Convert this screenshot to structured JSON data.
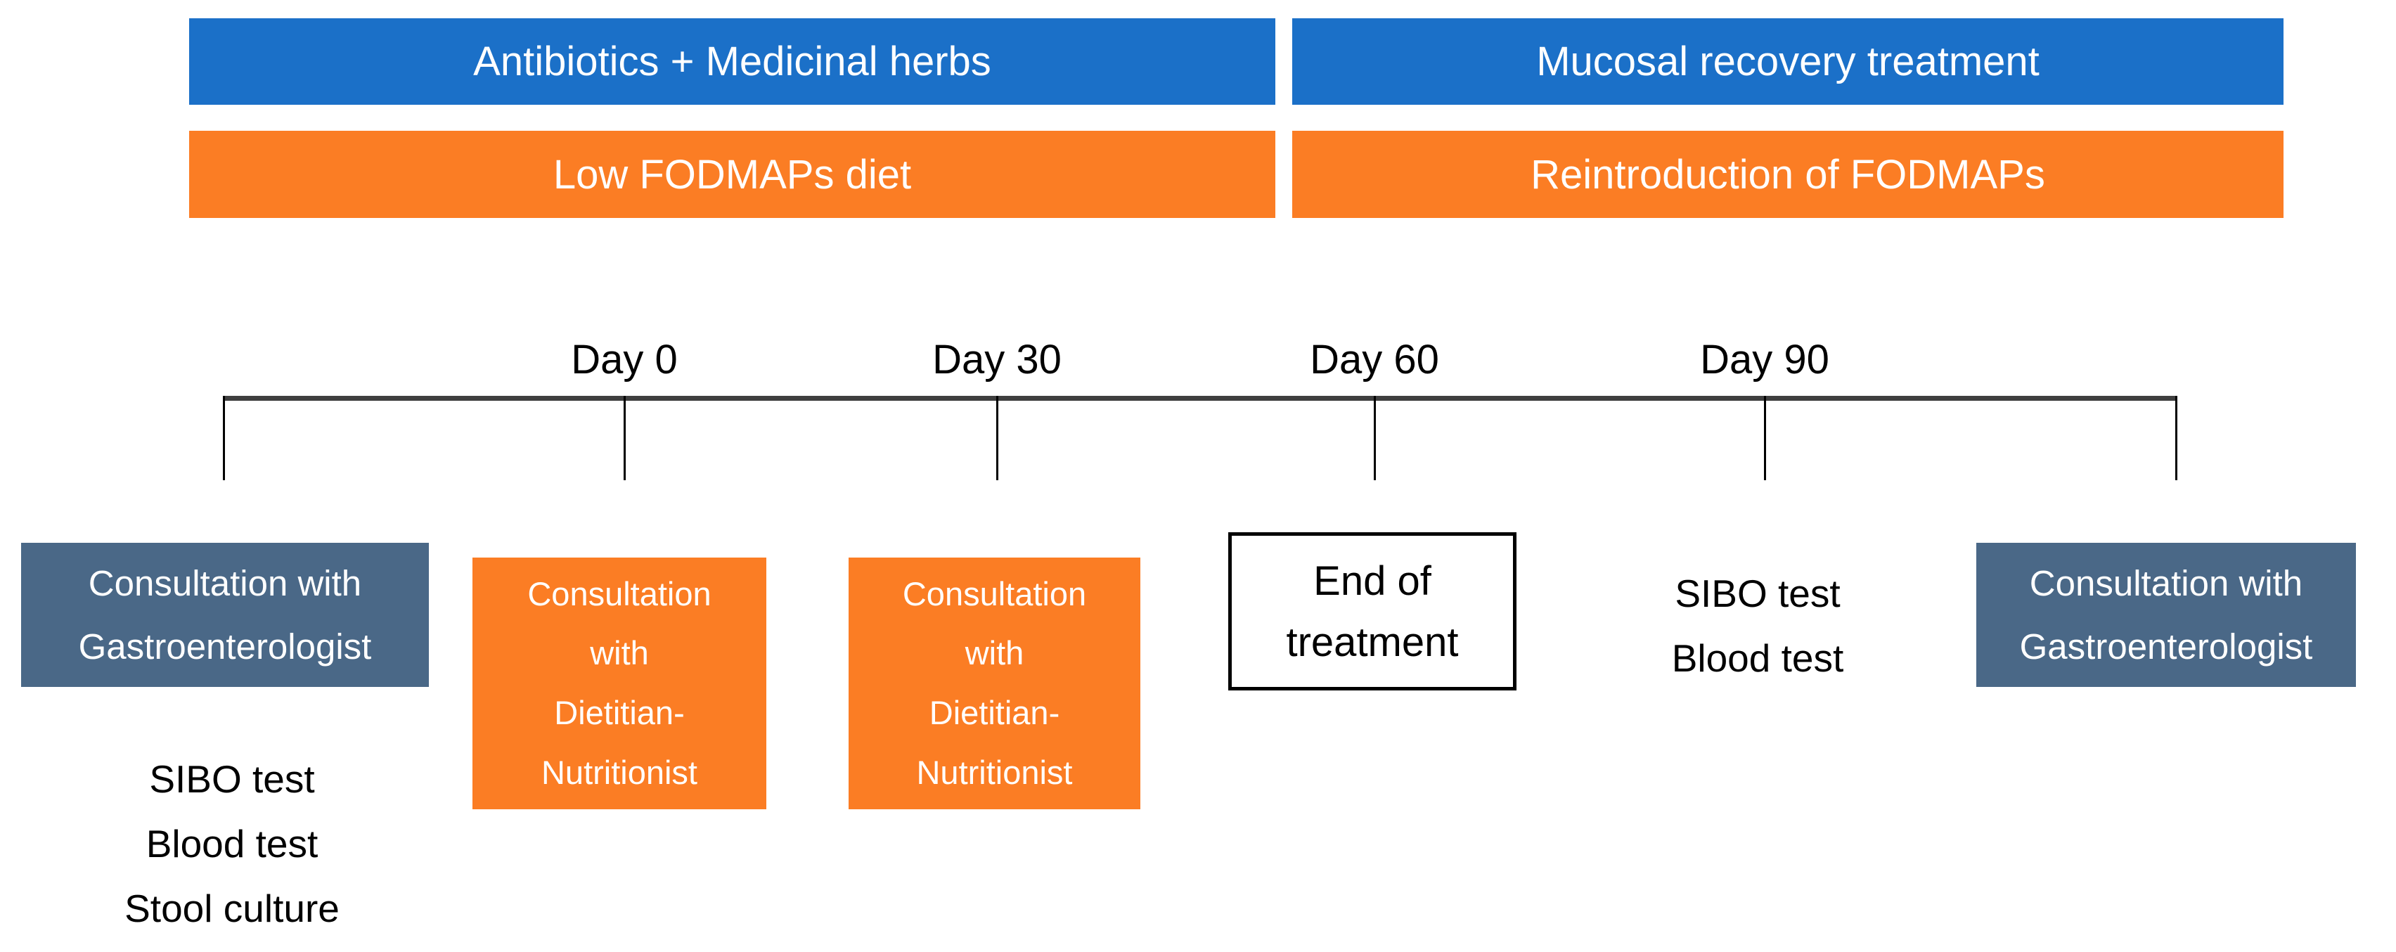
{
  "colors": {
    "blue": "#1B70C8",
    "orange": "#FB7D24",
    "slate": "#4A6887",
    "axis": "#3F3F3F",
    "text_dark": "#000000",
    "text_light": "#FFFFFF"
  },
  "phases": {
    "antibiotics_herbs": "Antibiotics + Medicinal herbs",
    "mucosal_recovery": "Mucosal recovery treatment",
    "low_fodmap_diet": "Low FODMAPs diet",
    "fodmap_reintroduction": "Reintroduction of FODMAPs"
  },
  "timeline": {
    "labels": [
      "Day 0",
      "Day 30",
      "Day 60",
      "Day 90"
    ]
  },
  "events": {
    "gastro_consult_start": "Consultation with\nGastroenterologist",
    "baseline_tests": "SIBO test\nBlood test\nStool culture",
    "dietitian_consult_day0": "Consultation\nwith\nDietitian-\nNutritionist",
    "dietitian_consult_day30": "Consultation\nwith\nDietitian-\nNutritionist",
    "end_of_treatment": "End of\ntreatment",
    "day90_tests": "SIBO test\nBlood test",
    "gastro_consult_end": "Consultation with\nGastroenterologist"
  }
}
